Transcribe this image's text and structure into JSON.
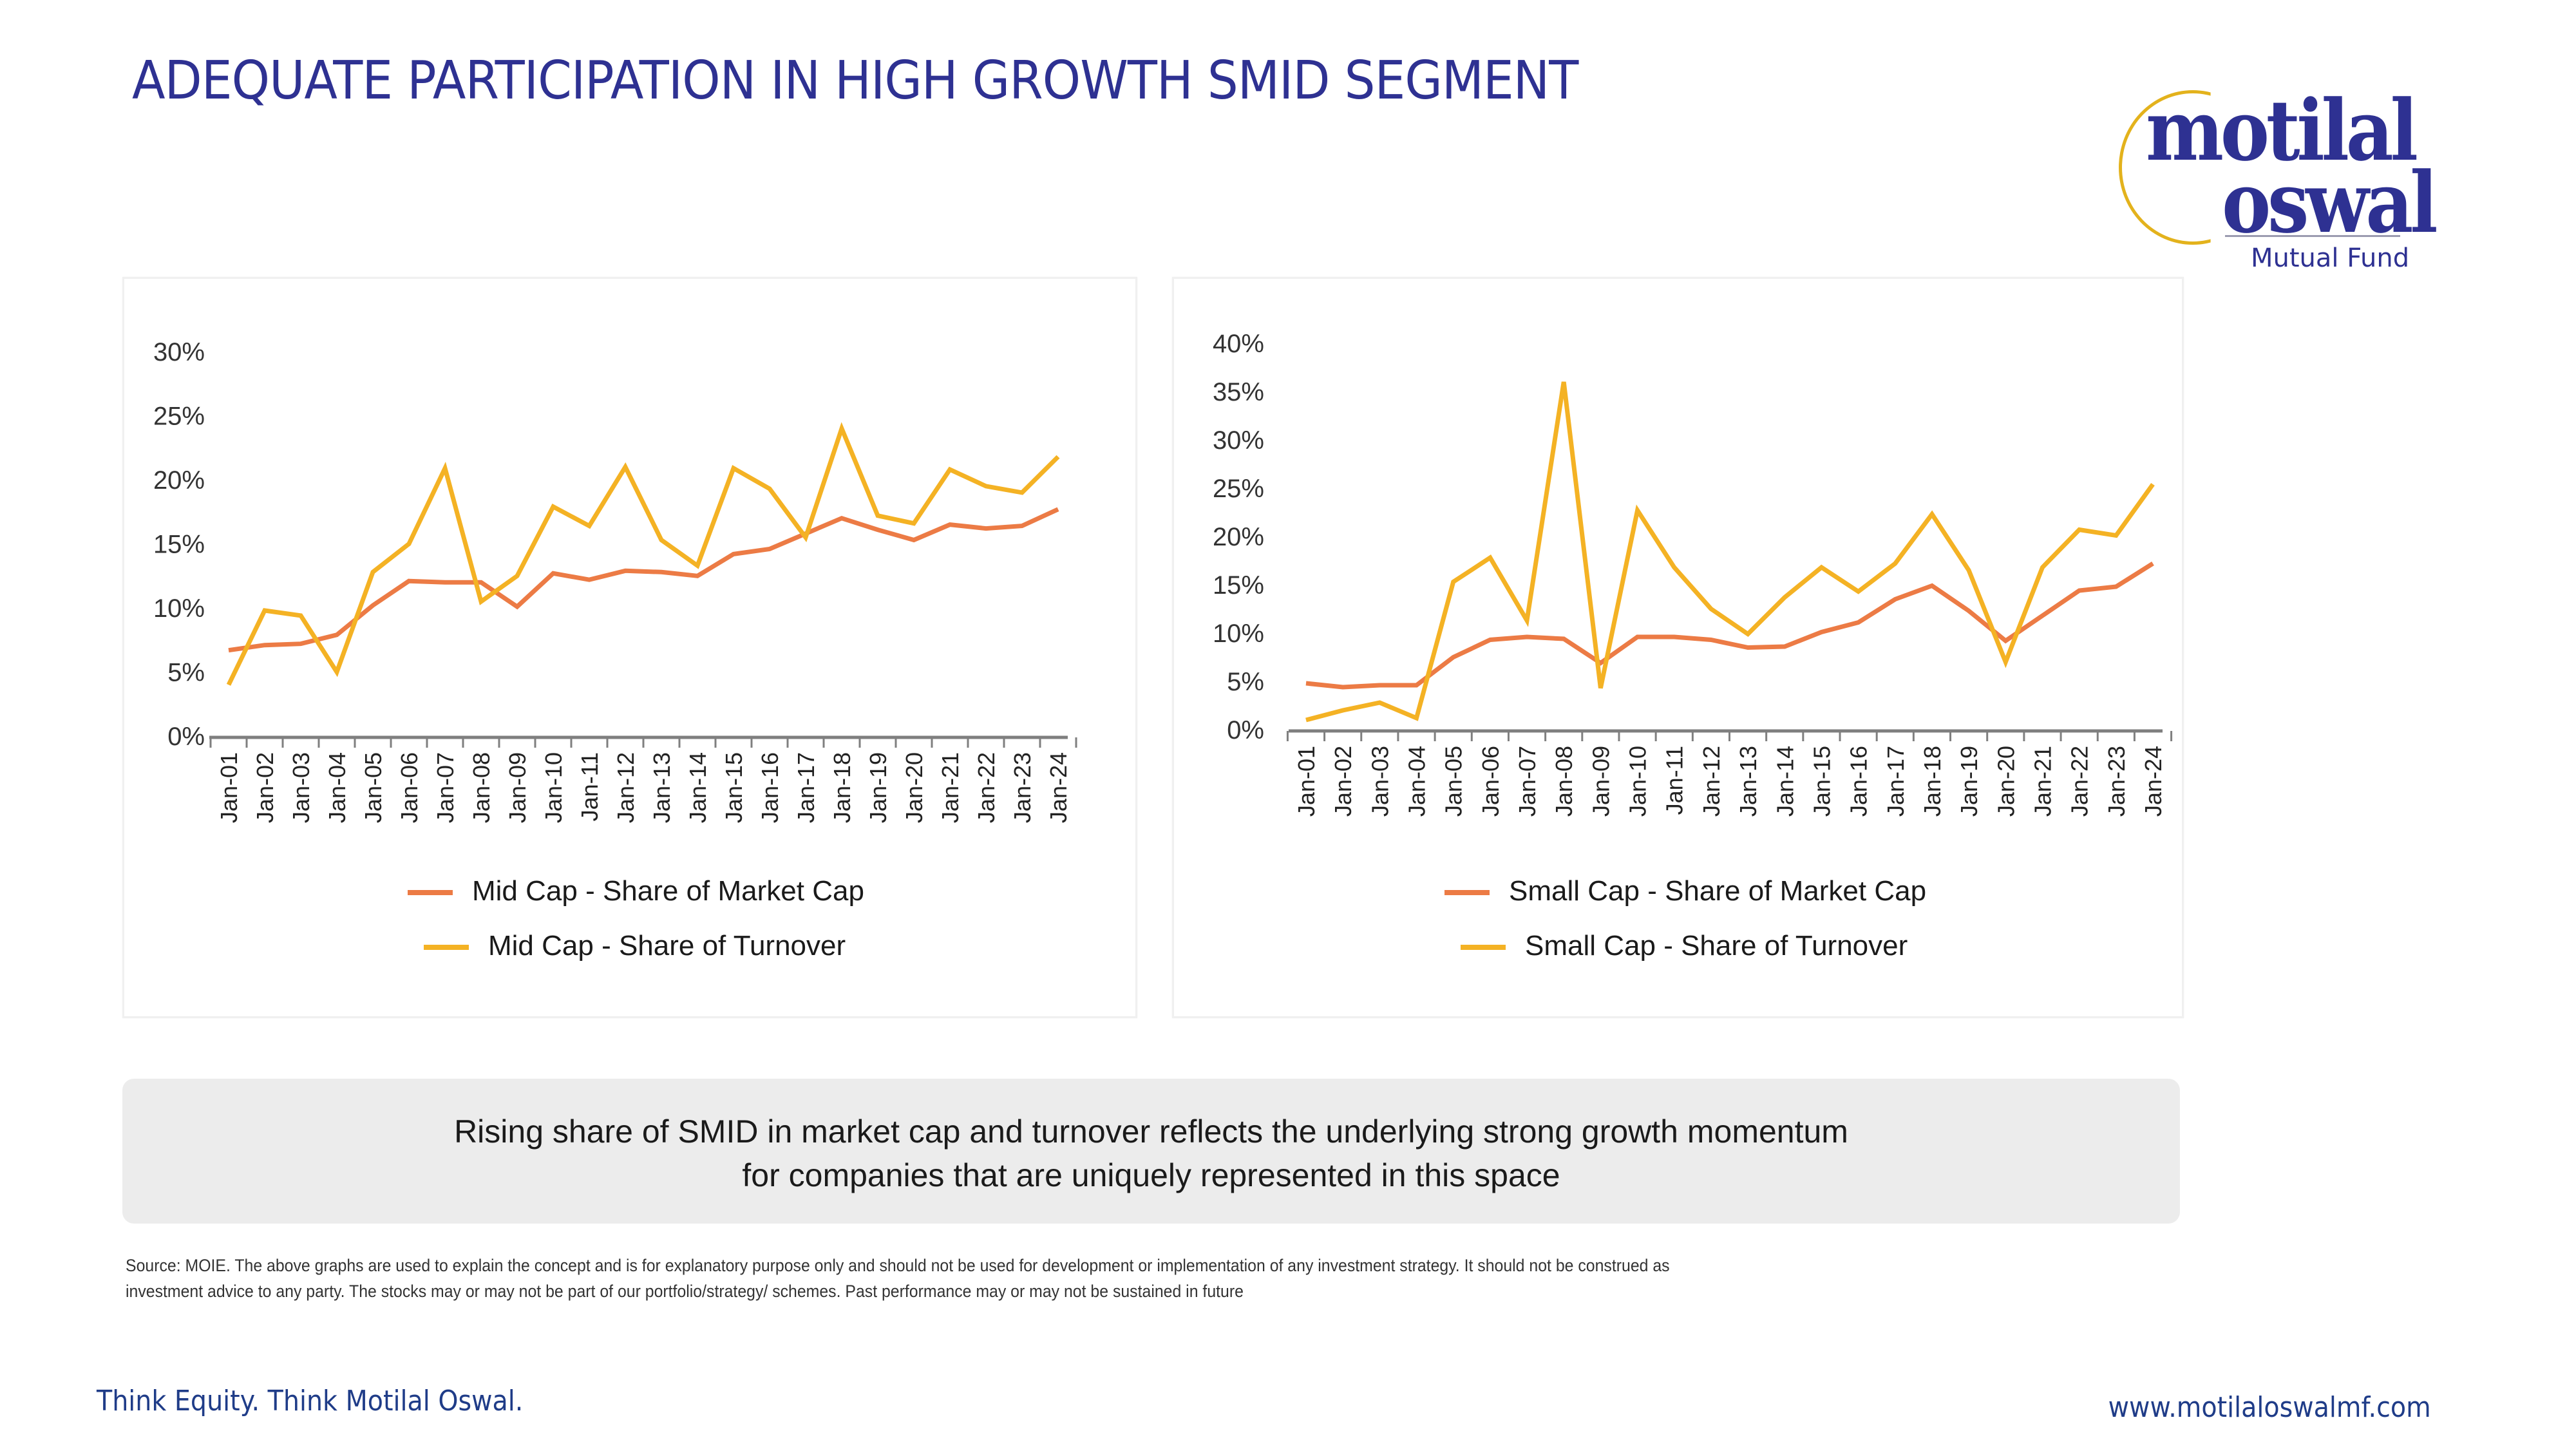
{
  "slide": {
    "title": "ADEQUATE PARTICIPATION IN HIGH GROWTH SMID SEGMENT"
  },
  "logo": {
    "line1": "motilal",
    "line2": "oswal",
    "subtitle": "Mutual Fund"
  },
  "colors": {
    "title": "#2e3192",
    "market_cap_series": "#ec7b45",
    "turnover_series": "#f4b224",
    "axis": "#7f7f7f",
    "callout_bg": "#ececec",
    "footer": "#1f3c88"
  },
  "chart_data": [
    {
      "type": "line",
      "title": "",
      "xlabel": "",
      "ylabel": "",
      "ylim": [
        0,
        30
      ],
      "y_ticks": [
        "0%",
        "5%",
        "10%",
        "15%",
        "20%",
        "25%",
        "30%"
      ],
      "y_tick_values": [
        0,
        5,
        10,
        15,
        20,
        25,
        30
      ],
      "grid": false,
      "legend_position": "bottom",
      "categories": [
        "Jan-01",
        "Jan-02",
        "Jan-03",
        "Jan-04",
        "Jan-05",
        "Jan-06",
        "Jan-07",
        "Jan-08",
        "Jan-09",
        "Jan-10",
        "Jan-11",
        "Jan-12",
        "Jan-13",
        "Jan-14",
        "Jan-15",
        "Jan-16",
        "Jan-17",
        "Jan-18",
        "Jan-19",
        "Jan-20",
        "Jan-21",
        "Jan-22",
        "Jan-23",
        "Jan-24"
      ],
      "series": [
        {
          "name": "Mid Cap - Share of Market Cap",
          "color": "#ec7b45",
          "values": [
            6.7,
            7.1,
            7.2,
            7.9,
            10.2,
            12.1,
            12.0,
            12.0,
            10.1,
            12.7,
            12.2,
            12.9,
            12.8,
            12.5,
            14.2,
            14.6,
            15.8,
            17.0,
            16.1,
            15.3,
            16.5,
            16.2,
            16.4,
            17.7
          ]
        },
        {
          "name": "Mid Cap - Share of Turnover",
          "color": "#f4b224",
          "values": [
            4.0,
            9.8,
            9.4,
            5.0,
            12.8,
            15.0,
            20.9,
            10.5,
            12.5,
            17.9,
            16.4,
            21.0,
            15.3,
            13.3,
            20.9,
            19.3,
            15.5,
            24.0,
            17.2,
            16.6,
            20.8,
            19.5,
            19.0,
            21.8
          ]
        }
      ]
    },
    {
      "type": "line",
      "title": "",
      "xlabel": "",
      "ylabel": "",
      "ylim": [
        0,
        40
      ],
      "y_ticks": [
        "0%",
        "5%",
        "10%",
        "15%",
        "20%",
        "25%",
        "30%",
        "35%",
        "40%"
      ],
      "y_tick_values": [
        0,
        5,
        10,
        15,
        20,
        25,
        30,
        35,
        40
      ],
      "grid": false,
      "legend_position": "bottom",
      "categories": [
        "Jan-01",
        "Jan-02",
        "Jan-03",
        "Jan-04",
        "Jan-05",
        "Jan-06",
        "Jan-07",
        "Jan-08",
        "Jan-09",
        "Jan-10",
        "Jan-11",
        "Jan-12",
        "Jan-13",
        "Jan-14",
        "Jan-15",
        "Jan-16",
        "Jan-17",
        "Jan-18",
        "Jan-19",
        "Jan-20",
        "Jan-21",
        "Jan-22",
        "Jan-23",
        "Jan-24"
      ],
      "series": [
        {
          "name": "Small Cap - Share of Market Cap",
          "color": "#ec7b45",
          "values": [
            4.8,
            4.4,
            4.6,
            4.6,
            7.5,
            9.3,
            9.6,
            9.4,
            6.9,
            9.6,
            9.6,
            9.3,
            8.5,
            8.6,
            10.1,
            11.1,
            13.5,
            14.9,
            12.3,
            9.2,
            11.8,
            14.4,
            14.8,
            17.2
          ]
        },
        {
          "name": "Small Cap - Share of Turnover",
          "color": "#f4b224",
          "values": [
            1.0,
            2.0,
            2.8,
            1.2,
            15.3,
            17.8,
            11.3,
            36.0,
            4.3,
            22.7,
            16.8,
            12.5,
            9.9,
            13.7,
            16.8,
            14.3,
            17.2,
            22.3,
            16.5,
            7.0,
            16.8,
            20.7,
            20.1,
            25.4
          ]
        }
      ]
    }
  ],
  "callout": {
    "line1": "Rising share of SMID in  market cap and turnover reflects the underlying strong growth  momentum",
    "line2": "for companies that are uniquely represented in this space"
  },
  "source": {
    "line1": "Source: MOIE. The  above graphs are used to explain the concept and is for explanatory purpose only and should not be used for development or implementation of any investment strategy. It should not be construed as",
    "line2": "investment advice to any party. The stocks may or may not be part of our portfolio/strategy/ schemes. Past performance may or may not be sustained in future"
  },
  "footer": {
    "tagline": "Think Equity. Think Motilal Oswal.",
    "website": "www.motilaloswalmf.com"
  }
}
